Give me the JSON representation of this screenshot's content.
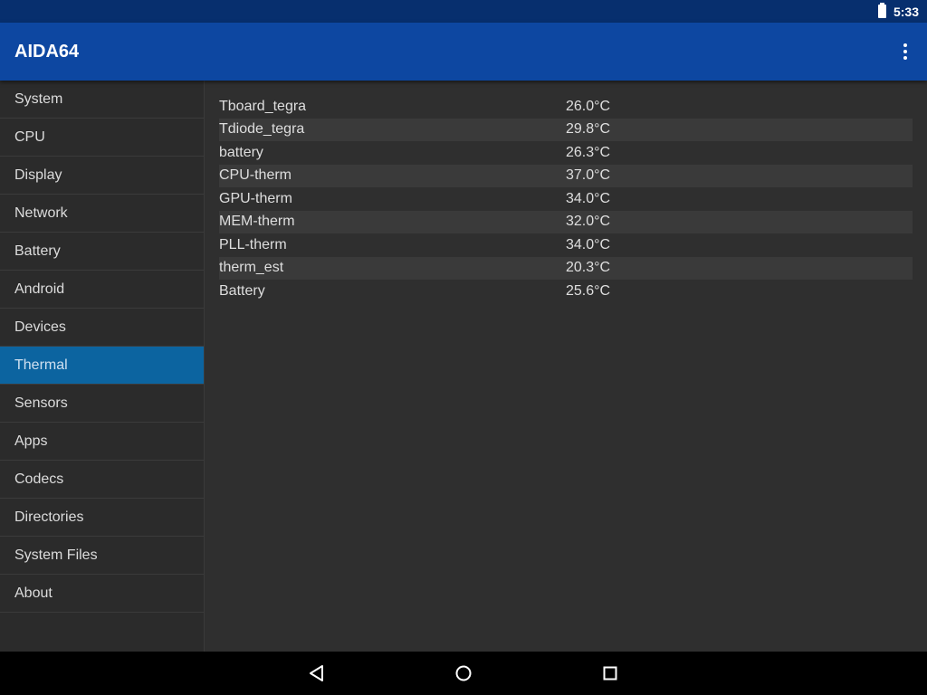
{
  "status_bar": {
    "time": "5:33",
    "battery_icon": "battery-full-icon"
  },
  "app_bar": {
    "title": "AIDA64",
    "menu_icon": "more-vert-icon"
  },
  "sidebar": {
    "selected": "Thermal",
    "items": [
      {
        "label": "System"
      },
      {
        "label": "CPU"
      },
      {
        "label": "Display"
      },
      {
        "label": "Network"
      },
      {
        "label": "Battery"
      },
      {
        "label": "Android"
      },
      {
        "label": "Devices"
      },
      {
        "label": "Thermal"
      },
      {
        "label": "Sensors"
      },
      {
        "label": "Apps"
      },
      {
        "label": "Codecs"
      },
      {
        "label": "Directories"
      },
      {
        "label": "System Files"
      },
      {
        "label": "About"
      }
    ]
  },
  "thermal": {
    "rows": [
      {
        "name": "Tboard_tegra",
        "value": "26.0°C"
      },
      {
        "name": "Tdiode_tegra",
        "value": "29.8°C"
      },
      {
        "name": "battery",
        "value": "26.3°C"
      },
      {
        "name": "CPU-therm",
        "value": "37.0°C"
      },
      {
        "name": "GPU-therm",
        "value": "34.0°C"
      },
      {
        "name": "MEM-therm",
        "value": "32.0°C"
      },
      {
        "name": "PLL-therm",
        "value": "34.0°C"
      },
      {
        "name": "therm_est",
        "value": "20.3°C"
      },
      {
        "name": "Battery",
        "value": "25.6°C"
      }
    ]
  },
  "colors": {
    "status_bar": "#072f6e",
    "app_bar": "#0d47a1",
    "selected_item": "#0c64a0",
    "background": "#2f2f2f",
    "stripe": "#3a3a3a"
  },
  "nav_bar": {
    "buttons": [
      "back-icon",
      "home-icon",
      "recents-icon"
    ]
  }
}
